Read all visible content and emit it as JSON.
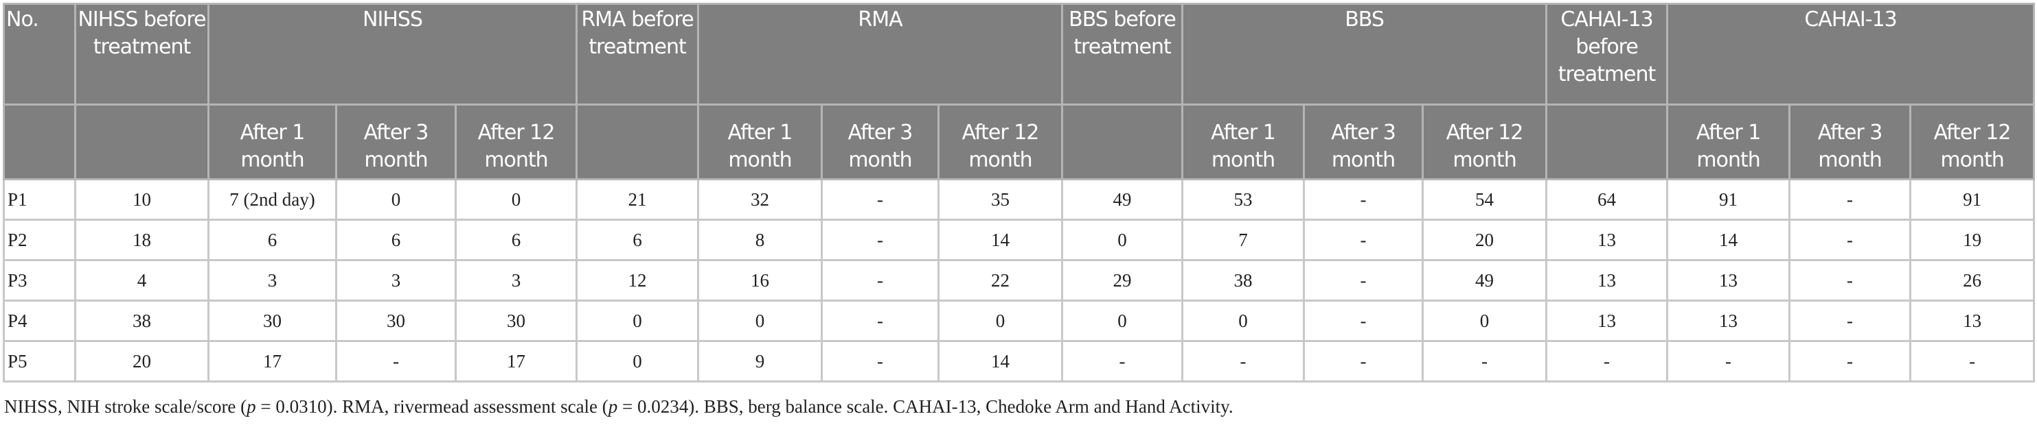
{
  "header": {
    "no": "No.",
    "groups": [
      {
        "before": "NIHSS before treatment",
        "label": "NIHSS"
      },
      {
        "before": "RMA before treatment",
        "label": "RMA"
      },
      {
        "before": "BBS before treatment",
        "label": "BBS"
      },
      {
        "before": "CAHAI-13 before treatment",
        "label": "CAHAI-13"
      }
    ],
    "sub": [
      "After 1 month",
      "After 3 month",
      "After 12 month"
    ]
  },
  "rows": [
    {
      "id": "P1",
      "values": [
        "10",
        "7 (2nd day)",
        "0",
        "0",
        "21",
        "32",
        "-",
        "35",
        "49",
        "53",
        "-",
        "54",
        "64",
        "91",
        "-",
        "91"
      ]
    },
    {
      "id": "P2",
      "values": [
        "18",
        "6",
        "6",
        "6",
        "6",
        "8",
        "-",
        "14",
        "0",
        "7",
        "-",
        "20",
        "13",
        "14",
        "-",
        "19"
      ]
    },
    {
      "id": "P3",
      "values": [
        "4",
        "3",
        "3",
        "3",
        "12",
        "16",
        "-",
        "22",
        "29",
        "38",
        "-",
        "49",
        "13",
        "13",
        "-",
        "26"
      ]
    },
    {
      "id": "P4",
      "values": [
        "38",
        "30",
        "30",
        "30",
        "0",
        "0",
        "-",
        "0",
        "0",
        "0",
        "-",
        "0",
        "13",
        "13",
        "-",
        "13"
      ]
    },
    {
      "id": "P5",
      "values": [
        "20",
        "17",
        "-",
        "17",
        "0",
        "9",
        "-",
        "14",
        "-",
        "-",
        "-",
        "-",
        "-",
        "-",
        "-",
        "-"
      ]
    }
  ],
  "caption": {
    "p1": "NIHSS, NIH stroke scale/score (",
    "p": "p",
    "p2": " = 0.0310). RMA, rivermead assessment scale (",
    "p3": " = 0.0234). BBS, berg balance scale. CAHAI-13, Chedoke Arm and Hand Activity."
  }
}
